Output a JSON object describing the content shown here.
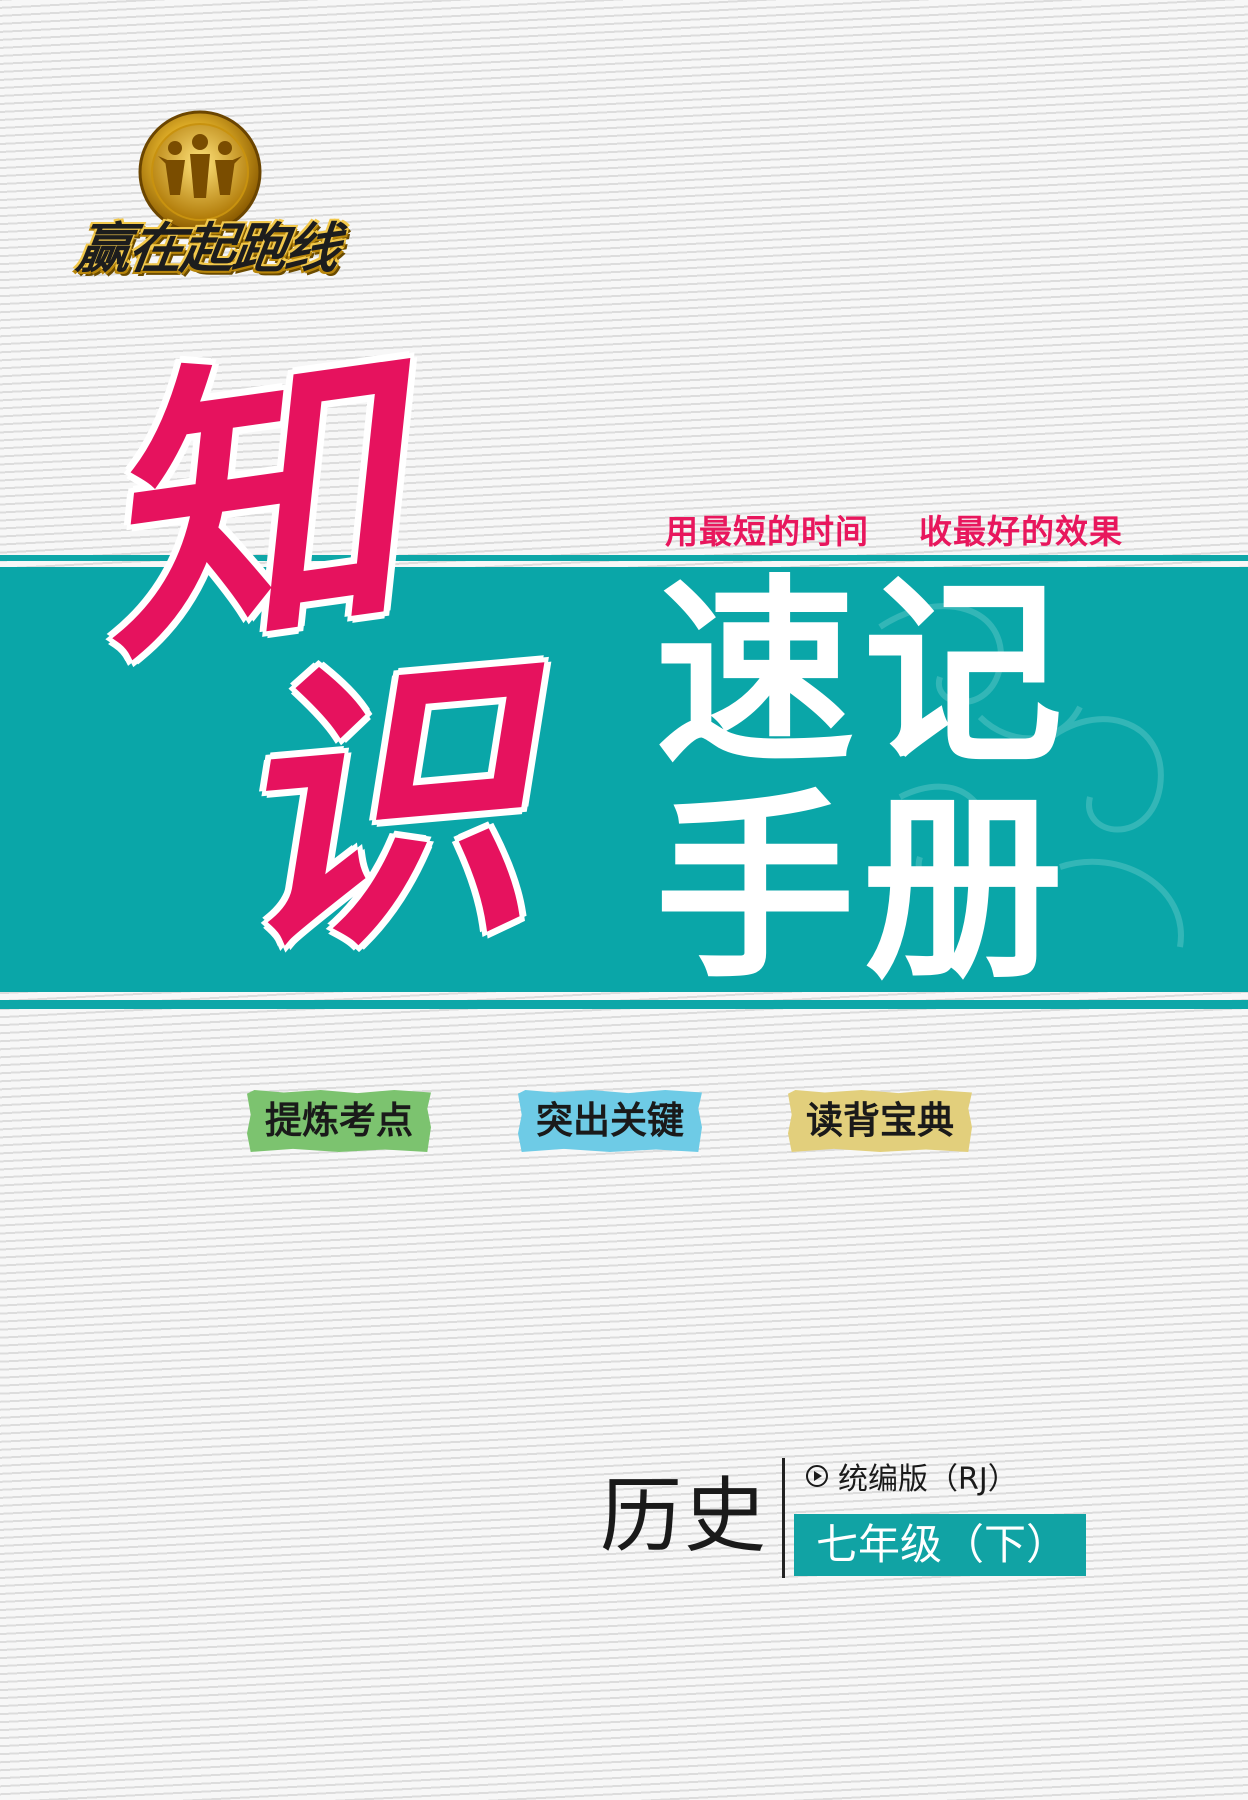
{
  "logo": {
    "text": "赢在起跑线"
  },
  "slogan": "用最短的时间    收最好的效果",
  "title": {
    "char1": "知",
    "char2": "识",
    "line1": "速记",
    "line2": "手册"
  },
  "tags": [
    "提炼考点",
    "突出关键",
    "读背宝典"
  ],
  "subject": "历史",
  "edition": "统编版（RJ）",
  "grade": "七年级（下）",
  "colors": {
    "teal": "#0aa6a8",
    "magenta": "#e6125e",
    "tag_green": "#7cc36f",
    "tag_blue": "#6ecbe6",
    "tag_yellow": "#e2cf7c"
  }
}
